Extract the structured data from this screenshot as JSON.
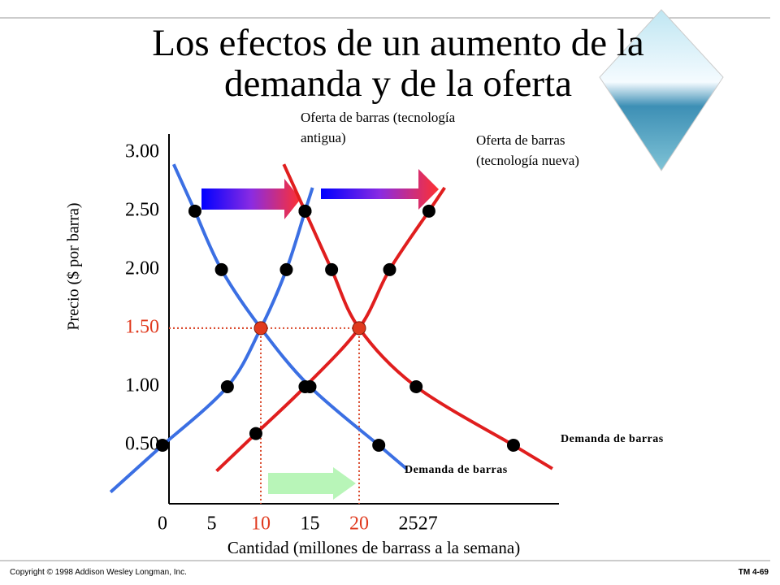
{
  "chart_data": {
    "type": "line",
    "title": "Los efectos de un aumento de la demanda y de la oferta",
    "x_label": "Cantidad (millones de barrass a la semana)",
    "y_label": "Precio ($ por barra)",
    "xlim": [
      0,
      40
    ],
    "ylim": [
      0,
      3.2
    ],
    "xticks": [
      0,
      5,
      10,
      15,
      20,
      25,
      27
    ],
    "yticks": [
      {
        "value": 0.5,
        "label": "0.50"
      },
      {
        "value": 1,
        "label": "1.00"
      },
      {
        "value": 1.5,
        "label": "1.50"
      },
      {
        "value": 2,
        "label": "2.00"
      },
      {
        "value": 2.5,
        "label": "2.50"
      },
      {
        "value": 3,
        "label": "3.00"
      }
    ],
    "grid": false,
    "highlight_color": "#e03a1e",
    "series": [
      {
        "name": "Demanda de barras",
        "color": "#3b6fe3",
        "x": [
          3.3,
          6,
          10,
          15,
          22
        ],
        "values": [
          2.5,
          2,
          1.5,
          1,
          0.5
        ]
      },
      {
        "name": "Oferta de barras (tecnología antigua)",
        "color": "#3b6fe3",
        "x": [
          0,
          6.6,
          10,
          12.6,
          14.5
        ],
        "values": [
          0.5,
          1,
          1.5,
          2,
          2.5
        ]
      },
      {
        "name": "Demanda de barras",
        "color": "#e01e1e",
        "x": [
          14.5,
          17.2,
          20,
          25.8,
          35.7
        ],
        "values": [
          2.5,
          2,
          1.5,
          1,
          0.5
        ]
      },
      {
        "name": "Oferta de barras (tecnología nueva)",
        "color": "#e01e1e",
        "x": [
          9.5,
          14.5,
          20,
          23.1,
          27.1
        ],
        "values": [
          0.6,
          1,
          1.5,
          2,
          2.5
        ]
      }
    ],
    "equilibrium": {
      "x": [
        10,
        20
      ],
      "values": [
        1.5,
        1.5
      ]
    }
  },
  "footer": {
    "copyright": "Copyright © 1998 Addison Wesley Longman, Inc.",
    "page": "TM 4-69"
  }
}
